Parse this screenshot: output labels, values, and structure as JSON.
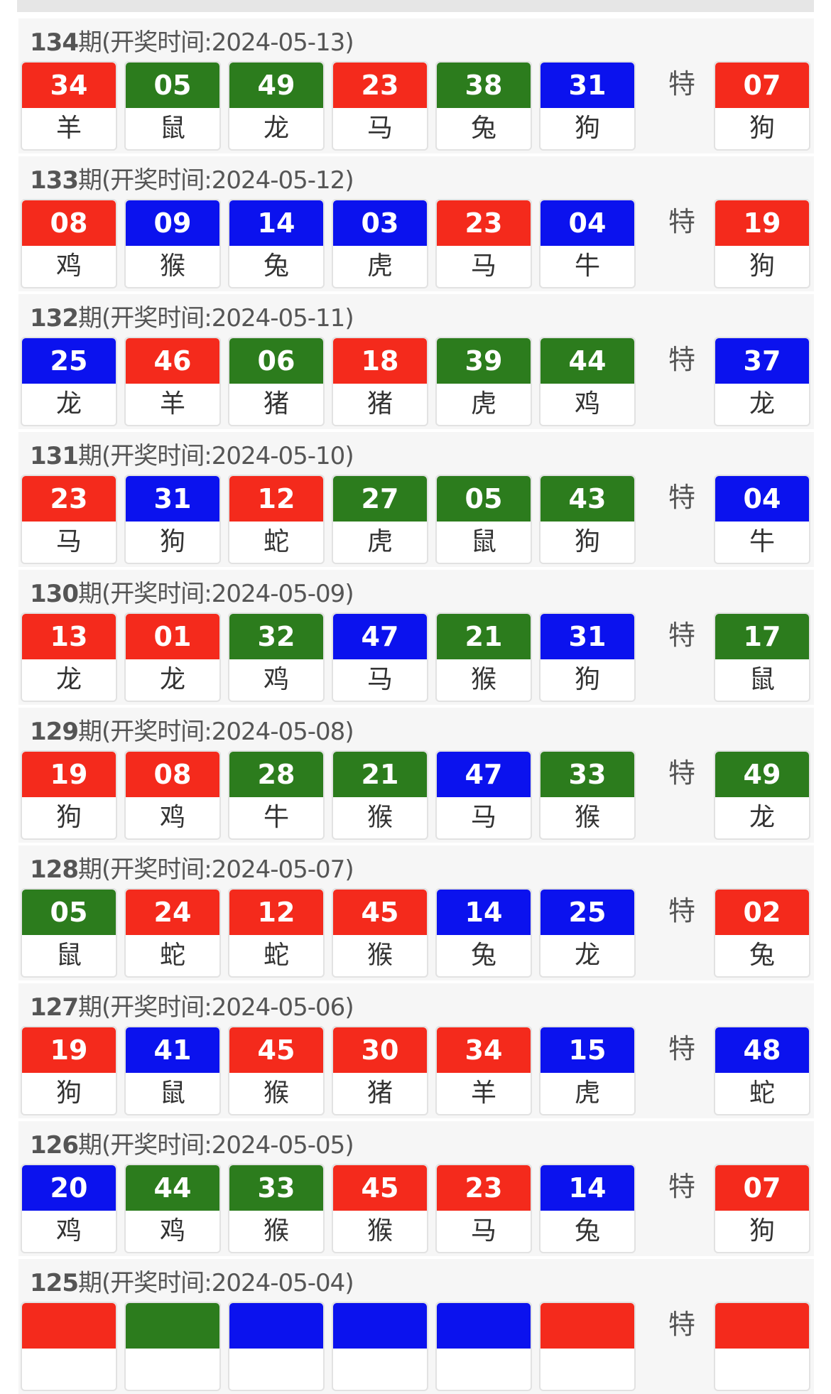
{
  "colors": {
    "red": "#f42a1c",
    "green": "#2c7c1d",
    "blue": "#0b12ee"
  },
  "special_label": "特",
  "header_template": {
    "suffix": "期(开奖时间:",
    "close": ")"
  },
  "draws": [
    {
      "period": "134",
      "date": "2024-05-13",
      "balls": [
        [
          "34",
          "羊",
          "red"
        ],
        [
          "05",
          "鼠",
          "green"
        ],
        [
          "49",
          "龙",
          "green"
        ],
        [
          "23",
          "马",
          "red"
        ],
        [
          "38",
          "兔",
          "green"
        ],
        [
          "31",
          "狗",
          "blue"
        ]
      ],
      "special": [
        "07",
        "狗",
        "red"
      ]
    },
    {
      "period": "133",
      "date": "2024-05-12",
      "balls": [
        [
          "08",
          "鸡",
          "red"
        ],
        [
          "09",
          "猴",
          "blue"
        ],
        [
          "14",
          "兔",
          "blue"
        ],
        [
          "03",
          "虎",
          "blue"
        ],
        [
          "23",
          "马",
          "red"
        ],
        [
          "04",
          "牛",
          "blue"
        ]
      ],
      "special": [
        "19",
        "狗",
        "red"
      ]
    },
    {
      "period": "132",
      "date": "2024-05-11",
      "balls": [
        [
          "25",
          "龙",
          "blue"
        ],
        [
          "46",
          "羊",
          "red"
        ],
        [
          "06",
          "猪",
          "green"
        ],
        [
          "18",
          "猪",
          "red"
        ],
        [
          "39",
          "虎",
          "green"
        ],
        [
          "44",
          "鸡",
          "green"
        ]
      ],
      "special": [
        "37",
        "龙",
        "blue"
      ]
    },
    {
      "period": "131",
      "date": "2024-05-10",
      "balls": [
        [
          "23",
          "马",
          "red"
        ],
        [
          "31",
          "狗",
          "blue"
        ],
        [
          "12",
          "蛇",
          "red"
        ],
        [
          "27",
          "虎",
          "green"
        ],
        [
          "05",
          "鼠",
          "green"
        ],
        [
          "43",
          "狗",
          "green"
        ]
      ],
      "special": [
        "04",
        "牛",
        "blue"
      ]
    },
    {
      "period": "130",
      "date": "2024-05-09",
      "balls": [
        [
          "13",
          "龙",
          "red"
        ],
        [
          "01",
          "龙",
          "red"
        ],
        [
          "32",
          "鸡",
          "green"
        ],
        [
          "47",
          "马",
          "blue"
        ],
        [
          "21",
          "猴",
          "green"
        ],
        [
          "31",
          "狗",
          "blue"
        ]
      ],
      "special": [
        "17",
        "鼠",
        "green"
      ]
    },
    {
      "period": "129",
      "date": "2024-05-08",
      "balls": [
        [
          "19",
          "狗",
          "red"
        ],
        [
          "08",
          "鸡",
          "red"
        ],
        [
          "28",
          "牛",
          "green"
        ],
        [
          "21",
          "猴",
          "green"
        ],
        [
          "47",
          "马",
          "blue"
        ],
        [
          "33",
          "猴",
          "green"
        ]
      ],
      "special": [
        "49",
        "龙",
        "green"
      ]
    },
    {
      "period": "128",
      "date": "2024-05-07",
      "balls": [
        [
          "05",
          "鼠",
          "green"
        ],
        [
          "24",
          "蛇",
          "red"
        ],
        [
          "12",
          "蛇",
          "red"
        ],
        [
          "45",
          "猴",
          "red"
        ],
        [
          "14",
          "兔",
          "blue"
        ],
        [
          "25",
          "龙",
          "blue"
        ]
      ],
      "special": [
        "02",
        "兔",
        "red"
      ]
    },
    {
      "period": "127",
      "date": "2024-05-06",
      "balls": [
        [
          "19",
          "狗",
          "red"
        ],
        [
          "41",
          "鼠",
          "blue"
        ],
        [
          "45",
          "猴",
          "red"
        ],
        [
          "30",
          "猪",
          "red"
        ],
        [
          "34",
          "羊",
          "red"
        ],
        [
          "15",
          "虎",
          "blue"
        ]
      ],
      "special": [
        "48",
        "蛇",
        "blue"
      ]
    },
    {
      "period": "126",
      "date": "2024-05-05",
      "balls": [
        [
          "20",
          "鸡",
          "blue"
        ],
        [
          "44",
          "鸡",
          "green"
        ],
        [
          "33",
          "猴",
          "green"
        ],
        [
          "45",
          "猴",
          "red"
        ],
        [
          "23",
          "马",
          "red"
        ],
        [
          "14",
          "兔",
          "blue"
        ]
      ],
      "special": [
        "07",
        "狗",
        "red"
      ]
    },
    {
      "period": "125",
      "date": "2024-05-04",
      "balls": [
        [
          "",
          "",
          "red"
        ],
        [
          "",
          "",
          "green"
        ],
        [
          "",
          "",
          "blue"
        ],
        [
          "",
          "",
          "blue"
        ],
        [
          "",
          "",
          "blue"
        ],
        [
          "",
          "",
          "red"
        ]
      ],
      "special": [
        "",
        "",
        "red"
      ]
    }
  ]
}
